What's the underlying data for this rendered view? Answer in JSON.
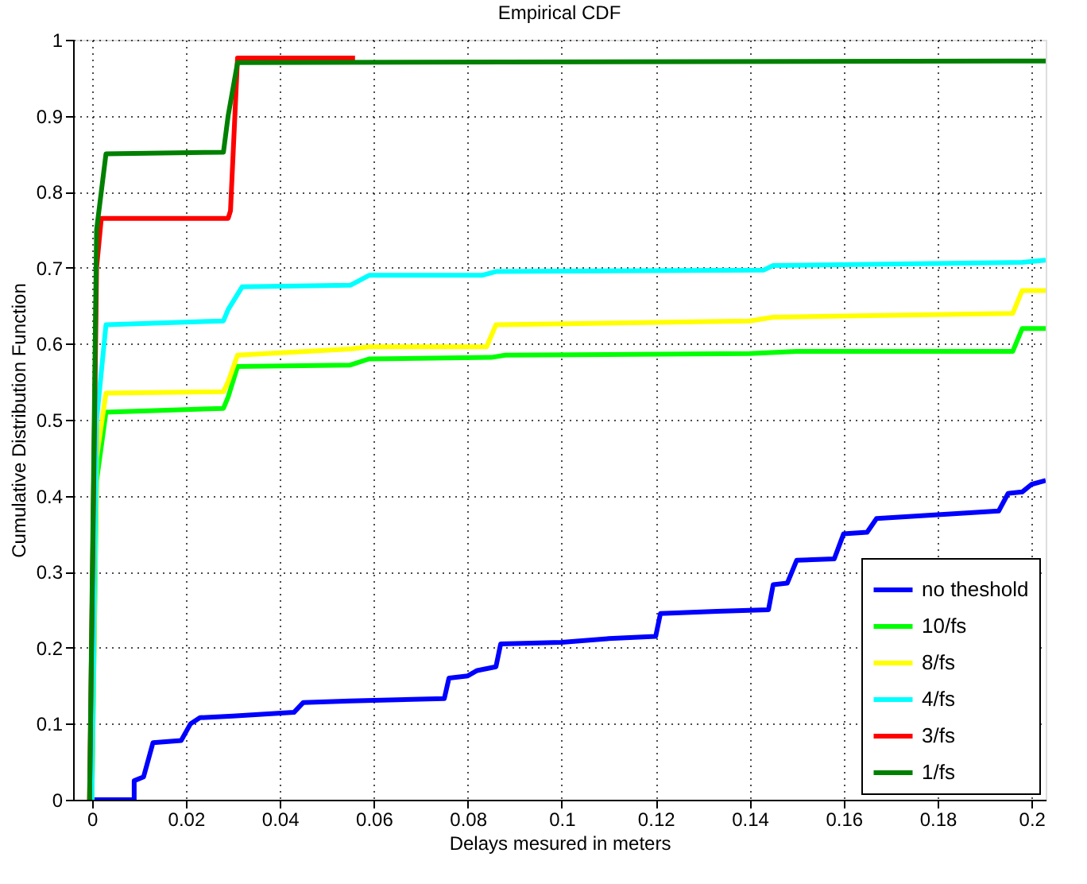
{
  "chart_data": {
    "type": "line",
    "title": "Empirical CDF",
    "xlabel": "Delays mesured in meters",
    "ylabel": "Cumulative Distribution Function",
    "xlim": [
      -0.004,
      0.203
    ],
    "ylim": [
      0,
      1
    ],
    "xticks": [
      0,
      0.02,
      0.04,
      0.06,
      0.08,
      0.1,
      0.12,
      0.14,
      0.16,
      0.18,
      0.2
    ],
    "yticks": [
      0,
      0.1,
      0.2,
      0.3,
      0.4,
      0.5,
      0.6,
      0.7,
      0.8,
      0.9,
      1
    ],
    "grid": true,
    "legend": "bottom right",
    "line_style": "solid",
    "marker": "none",
    "series": [
      {
        "name": "no theshold",
        "color": "#0000ff",
        "x": [
          -0.0005,
          0.009,
          0.009,
          0.011,
          0.013,
          0.019,
          0.021,
          0.023,
          0.03,
          0.043,
          0.045,
          0.055,
          0.075,
          0.076,
          0.08,
          0.082,
          0.086,
          0.087,
          0.1,
          0.11,
          0.12,
          0.121,
          0.133,
          0.144,
          0.145,
          0.148,
          0.15,
          0.158,
          0.16,
          0.165,
          0.167,
          0.18,
          0.193,
          0.195,
          0.198,
          0.2,
          0.203
        ],
        "values": [
          0,
          0,
          0.025,
          0.03,
          0.075,
          0.078,
          0.1,
          0.108,
          0.11,
          0.115,
          0.128,
          0.13,
          0.133,
          0.16,
          0.163,
          0.17,
          0.175,
          0.205,
          0.207,
          0.212,
          0.215,
          0.245,
          0.248,
          0.25,
          0.283,
          0.285,
          0.315,
          0.317,
          0.35,
          0.352,
          0.37,
          0.375,
          0.38,
          0.403,
          0.405,
          0.415,
          0.42
        ]
      },
      {
        "name": "10/fs",
        "color": "#00ff00",
        "x": [
          0,
          0.001,
          0.003,
          0.028,
          0.029,
          0.031,
          0.055,
          0.059,
          0.085,
          0.088,
          0.14,
          0.15,
          0.196,
          0.198,
          0.203
        ],
        "values": [
          0,
          0.42,
          0.51,
          0.515,
          0.53,
          0.57,
          0.572,
          0.58,
          0.582,
          0.585,
          0.587,
          0.59,
          0.59,
          0.62,
          0.62
        ]
      },
      {
        "name": "8/fs",
        "color": "#ffff00",
        "x": [
          0,
          0.001,
          0.003,
          0.028,
          0.029,
          0.031,
          0.055,
          0.059,
          0.084,
          0.086,
          0.14,
          0.145,
          0.196,
          0.198,
          0.203
        ],
        "values": [
          0,
          0.45,
          0.535,
          0.537,
          0.55,
          0.585,
          0.593,
          0.596,
          0.596,
          0.625,
          0.63,
          0.635,
          0.64,
          0.67,
          0.67
        ]
      },
      {
        "name": "4/fs",
        "color": "#00ffff",
        "x": [
          0,
          0.001,
          0.003,
          0.028,
          0.029,
          0.032,
          0.055,
          0.059,
          0.083,
          0.086,
          0.143,
          0.145,
          0.198,
          0.203
        ],
        "values": [
          0,
          0.5,
          0.625,
          0.63,
          0.645,
          0.675,
          0.677,
          0.69,
          0.69,
          0.695,
          0.697,
          0.703,
          0.707,
          0.71
        ]
      },
      {
        "name": "3/fs",
        "color": "#ff0000",
        "x": [
          -0.0005,
          0.001,
          0.002,
          0.029,
          0.0295,
          0.031,
          0.056
        ],
        "values": [
          0,
          0.7,
          0.765,
          0.765,
          0.775,
          0.976,
          0.976
        ]
      },
      {
        "name": "1/fs",
        "color": "#008000",
        "x": [
          -0.0005,
          0.001,
          0.003,
          0.028,
          0.029,
          0.031,
          0.203
        ],
        "values": [
          0,
          0.75,
          0.85,
          0.852,
          0.9,
          0.97,
          0.972
        ]
      }
    ]
  }
}
